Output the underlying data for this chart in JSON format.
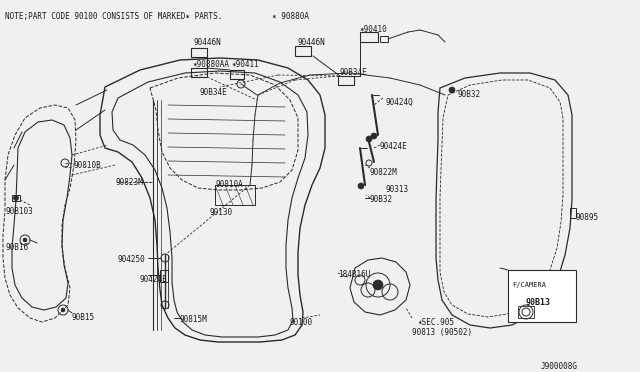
{
  "bg_color": "#f0f0f0",
  "line_color": "#2a2a2a",
  "text_color": "#1a1a1a",
  "figsize": [
    6.4,
    3.72
  ],
  "dpi": 100,
  "note_text": "NOTE;PART CODE 90100 CONSISTS OF MARKED✶ PARTS.",
  "star_90880A": "✶ 90880A",
  "diagram_id": "J900008G"
}
